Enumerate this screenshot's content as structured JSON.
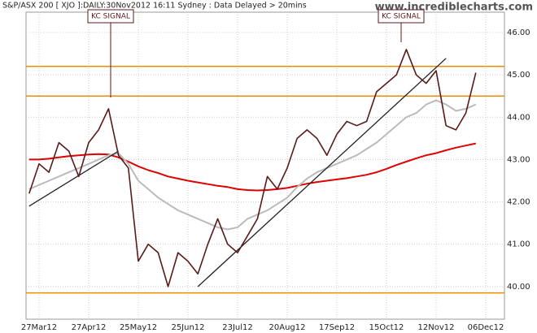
{
  "chart_data": {
    "type": "line",
    "header": "S&P/ASX 200 [ XJO ]:DAILY:30Nov2012 16:11 Sydney : Data Delayed > 20mins",
    "site": "www.incrediblecharts.com",
    "annotations": [
      "KC SIGNAL",
      "KC SIGNAL"
    ],
    "categories": [
      null,
      "27Mar12",
      null,
      null,
      null,
      null,
      "27Apr12",
      null,
      null,
      null,
      null,
      "25May12",
      null,
      null,
      null,
      null,
      "25Jun12",
      null,
      null,
      null,
      null,
      "23Jul12",
      null,
      null,
      null,
      null,
      "20Aug12",
      null,
      null,
      null,
      null,
      "17Sep12",
      null,
      null,
      null,
      null,
      "15Oct12",
      null,
      null,
      null,
      null,
      "12Nov12",
      null,
      null,
      null,
      null,
      "06Dec12"
    ],
    "series": [
      {
        "color": "#e00000",
        "width": 2,
        "values": [
          43.0,
          43.0,
          43.02,
          43.05,
          43.08,
          43.1,
          43.12,
          43.13,
          43.12,
          43.05,
          42.95,
          42.84,
          42.75,
          42.68,
          42.6,
          42.55,
          42.5,
          42.46,
          42.42,
          42.38,
          42.35,
          42.3,
          42.28,
          42.27,
          42.28,
          42.3,
          42.33,
          42.38,
          42.43,
          42.47,
          42.5,
          42.53,
          42.56,
          42.6,
          42.64,
          42.7,
          42.78,
          42.87,
          42.95,
          43.03,
          43.1,
          43.15,
          43.22,
          43.28,
          43.33,
          43.38,
          null
        ]
      },
      {
        "color": "#bbbbbb",
        "width": 2,
        "values": [
          42.3,
          42.4,
          42.5,
          42.6,
          42.7,
          42.8,
          42.9,
          43.0,
          43.1,
          43.15,
          42.9,
          42.5,
          42.3,
          42.1,
          41.95,
          41.8,
          41.7,
          41.6,
          41.5,
          41.4,
          41.35,
          41.4,
          41.6,
          41.7,
          41.8,
          41.95,
          42.1,
          42.35,
          42.55,
          42.7,
          42.8,
          42.9,
          43.0,
          43.1,
          43.25,
          43.4,
          43.6,
          43.8,
          44.0,
          44.1,
          44.3,
          44.4,
          44.3,
          44.15,
          44.2,
          44.3,
          null
        ]
      },
      {
        "color": "#5a1a1a",
        "width": 1.6,
        "values": [
          42.2,
          42.9,
          42.7,
          43.4,
          43.2,
          42.6,
          43.4,
          43.7,
          44.2,
          43.1,
          42.8,
          40.6,
          41.0,
          40.8,
          40.0,
          40.8,
          40.6,
          40.3,
          41.0,
          41.6,
          41.0,
          40.8,
          41.2,
          41.6,
          42.6,
          42.3,
          42.8,
          43.5,
          43.7,
          43.5,
          43.1,
          43.6,
          43.9,
          43.8,
          43.9,
          44.6,
          44.8,
          45.0,
          45.6,
          45.0,
          44.8,
          45.1,
          43.8,
          43.7,
          44.1,
          45.05,
          null
        ]
      }
    ],
    "trendlines": [
      {
        "color": "#222222",
        "values": [
          41.9,
          null,
          null,
          null,
          null,
          null,
          null,
          null,
          null,
          43.2,
          null,
          null,
          null,
          null,
          null,
          null,
          null,
          null,
          null,
          null,
          null,
          null,
          null,
          null,
          null,
          null,
          null,
          null,
          null,
          null,
          null,
          null,
          null,
          null,
          null,
          null,
          null,
          null,
          null,
          null,
          null,
          null,
          null,
          null,
          null,
          null,
          null
        ]
      },
      {
        "color": "#222222",
        "values": [
          null,
          null,
          null,
          null,
          null,
          null,
          null,
          null,
          null,
          null,
          null,
          null,
          null,
          null,
          null,
          null,
          null,
          40.0,
          null,
          null,
          null,
          null,
          null,
          null,
          null,
          null,
          null,
          null,
          null,
          null,
          null,
          null,
          null,
          null,
          null,
          null,
          null,
          null,
          null,
          null,
          null,
          null,
          45.39,
          null,
          null,
          null,
          null
        ]
      }
    ],
    "levels": [
      45.2,
      44.5,
      39.85
    ],
    "level_color": "#f08c00",
    "ylim": [
      39.23,
      46.48
    ],
    "yticks": [
      {
        "value": 40,
        "label": "40.00"
      },
      {
        "value": 41,
        "label": "41.00"
      },
      {
        "value": 42,
        "label": "42.00"
      },
      {
        "value": 43,
        "label": "43.00"
      },
      {
        "value": 44,
        "label": "44.00"
      },
      {
        "value": 45,
        "label": "45.00"
      },
      {
        "value": 46,
        "label": "46.00"
      }
    ],
    "grid": true
  }
}
